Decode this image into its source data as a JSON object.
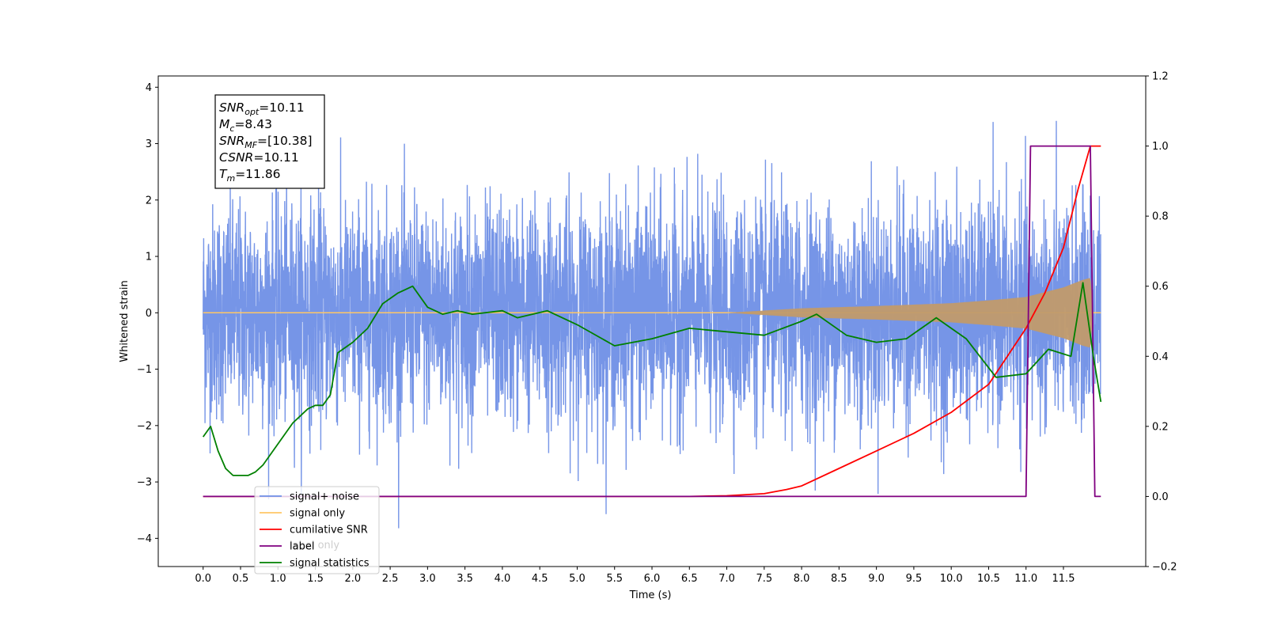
{
  "chart_data": {
    "type": "line",
    "xlabel": "Time (s)",
    "ylabel": "Whitened strain",
    "xlim": [
      -0.6,
      12.6
    ],
    "ylim_left": [
      -4.5,
      4.2
    ],
    "ylim_right": [
      -0.2,
      1.2
    ],
    "x_ticks": [
      0.0,
      0.5,
      1.0,
      1.5,
      2.0,
      2.5,
      3.0,
      3.5,
      4.0,
      4.5,
      5.0,
      5.5,
      6.0,
      6.5,
      7.0,
      7.5,
      8.0,
      8.5,
      9.0,
      9.5,
      10.0,
      10.5,
      11.0,
      11.5
    ],
    "x_tick_labels": [
      "0.0",
      "0.5",
      "1.0",
      "1.5",
      "2.0",
      "2.5",
      "3.0",
      "3.5",
      "4.0",
      "4.5",
      "5.0",
      "5.5",
      "6.0",
      "6.5",
      "7.0",
      "7.5",
      "8.0",
      "8.5",
      "9.0",
      "9.5",
      "10.0",
      "10.5",
      "11.0",
      "11.5"
    ],
    "y_left_ticks": [
      -4,
      -3,
      -2,
      -1,
      0,
      1,
      2,
      3,
      4
    ],
    "y_left_tick_labels": [
      "−4",
      "−3",
      "−2",
      "−1",
      "0",
      "1",
      "2",
      "3",
      "4"
    ],
    "y_right_ticks": [
      -0.2,
      0.0,
      0.2,
      0.4,
      0.6,
      0.8,
      1.0,
      1.2
    ],
    "y_right_tick_labels": [
      "−0.2",
      "0.0",
      "0.2",
      "0.4",
      "0.6",
      "0.8",
      "1.0",
      "1.2"
    ],
    "grid": false,
    "legend_position": "bottom-left",
    "legend": [
      {
        "label": "signal+ noise",
        "color": "#6f8fe6"
      },
      {
        "label": "signal only",
        "color": "#ffc766"
      },
      {
        "label": "cumilative SNR",
        "color": "#ff0000"
      },
      {
        "label": "label",
        "color": "#800080"
      },
      {
        "label": "signal statistics",
        "color": "#008000"
      }
    ],
    "legend_ghost_text": [
      "label only"
    ],
    "stats_box_lines": [
      {
        "sym": "SNR",
        "sub": "opt",
        "val": "=10.11"
      },
      {
        "sym": "M",
        "sub": "c",
        "val": "=8.43"
      },
      {
        "sym": "SNR",
        "sub": "MF",
        "val": "=[10.38]"
      },
      {
        "sym": "CSNR",
        "sub": "",
        "val": "=10.11"
      },
      {
        "sym": "T",
        "sub": "m",
        "val": "=11.86"
      }
    ],
    "series": [
      {
        "name": "signal+ noise",
        "axis": "left",
        "color": "#6f8fe6",
        "x_range": [
          0.0,
          12.0
        ],
        "noise_sigma": 0.95,
        "bulk_amplitude": [
          -1.6,
          1.4
        ],
        "min": -4.1,
        "max": 3.78
      },
      {
        "name": "signal only",
        "axis": "left",
        "color": "#ffc766",
        "x_range": [
          0.0,
          12.0
        ],
        "envelope": {
          "x": [
            0.0,
            7.0,
            8.0,
            9.0,
            10.0,
            10.5,
            11.0,
            11.5,
            11.75,
            11.86,
            11.9,
            12.0
          ],
          "y": [
            0.0,
            0.0,
            0.08,
            0.12,
            0.17,
            0.22,
            0.28,
            0.45,
            0.58,
            0.62,
            0.0,
            0.0
          ]
        }
      },
      {
        "name": "cumilative SNR",
        "axis": "right",
        "color": "#ff0000",
        "x": [
          0.0,
          6.5,
          7.0,
          7.5,
          7.8,
          8.0,
          8.5,
          9.0,
          9.5,
          10.0,
          10.5,
          11.0,
          11.25,
          11.5,
          11.7,
          11.86,
          12.0
        ],
        "y": [
          0.0,
          0.0,
          0.002,
          0.008,
          0.02,
          0.03,
          0.08,
          0.13,
          0.18,
          0.24,
          0.32,
          0.48,
          0.58,
          0.71,
          0.88,
          1.0,
          1.0
        ]
      },
      {
        "name": "label",
        "axis": "right",
        "color": "#800080",
        "x": [
          0.0,
          11.0,
          11.06,
          11.86,
          11.92,
          12.0
        ],
        "y": [
          0.0,
          0.0,
          1.0,
          1.0,
          0.0,
          0.0
        ]
      },
      {
        "name": "signal statistics",
        "axis": "right",
        "color": "#008000",
        "x": [
          0.0,
          0.1,
          0.2,
          0.3,
          0.4,
          0.6,
          0.7,
          0.8,
          1.0,
          1.2,
          1.4,
          1.5,
          1.6,
          1.7,
          1.8,
          2.0,
          2.2,
          2.4,
          2.6,
          2.8,
          3.0,
          3.2,
          3.4,
          3.6,
          4.0,
          4.2,
          4.6,
          5.0,
          5.5,
          6.0,
          6.5,
          7.0,
          7.5,
          8.0,
          8.2,
          8.6,
          9.0,
          9.4,
          9.8,
          10.2,
          10.6,
          11.0,
          11.3,
          11.6,
          11.76,
          11.9,
          12.0
        ],
        "y": [
          0.17,
          0.2,
          0.13,
          0.08,
          0.06,
          0.06,
          0.07,
          0.09,
          0.15,
          0.21,
          0.25,
          0.26,
          0.26,
          0.29,
          0.41,
          0.44,
          0.48,
          0.55,
          0.58,
          0.6,
          0.54,
          0.52,
          0.53,
          0.52,
          0.53,
          0.51,
          0.53,
          0.49,
          0.43,
          0.45,
          0.48,
          0.47,
          0.46,
          0.5,
          0.52,
          0.46,
          0.44,
          0.45,
          0.51,
          0.45,
          0.34,
          0.35,
          0.42,
          0.4,
          0.61,
          0.4,
          0.27
        ]
      }
    ]
  }
}
